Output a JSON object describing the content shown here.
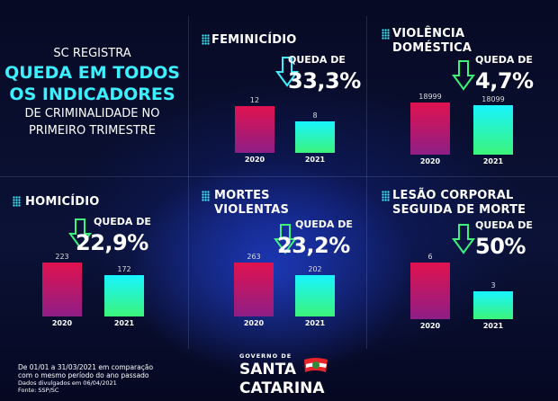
{
  "intro": {
    "line1": "SC REGISTRA",
    "hl1": "QUEDA EM TODOS",
    "hl2": "OS INDICADORES",
    "line2": "DE CRIMINALIDADE NO",
    "line3": "PRIMEIRO TRIMESTRE"
  },
  "colors": {
    "accent": "#3cf0ff",
    "bar2020": "#e0124f",
    "bar2021": "#18f4ff",
    "arrow_green": "#3cf47a"
  },
  "chart_data": [
    {
      "type": "bar",
      "title": "FEMINICÍDIO",
      "categories": [
        "2020",
        "2021"
      ],
      "values": [
        12,
        8
      ],
      "drop_label": "QUEDA DE",
      "drop": "33,3%"
    },
    {
      "type": "bar",
      "title": "VIOLÊNCIA DOMÉSTICA",
      "title_l1": "VIOLÊNCIA",
      "title_l2": "DOMÉSTICA",
      "categories": [
        "2020",
        "2021"
      ],
      "values": [
        18999,
        18099
      ],
      "drop_label": "QUEDA DE",
      "drop": "4,7%"
    },
    {
      "type": "bar",
      "title": "HOMICÍDIO",
      "categories": [
        "2020",
        "2021"
      ],
      "values": [
        223,
        172
      ],
      "drop_label": "QUEDA DE",
      "drop": "22,9%"
    },
    {
      "type": "bar",
      "title": "MORTES VIOLENTAS",
      "title_l1": "MORTES",
      "title_l2": "VIOLENTAS",
      "categories": [
        "2020",
        "2021"
      ],
      "values": [
        263,
        202
      ],
      "drop_label": "QUEDA DE",
      "drop": "23,2%"
    },
    {
      "type": "bar",
      "title": "LESÃO CORPORAL SEGUIDA DE MORTE",
      "title_l1": "LESÃO CORPORAL",
      "title_l2": "SEGUIDA DE MORTE",
      "categories": [
        "2020",
        "2021"
      ],
      "values": [
        6,
        3
      ],
      "drop_label": "QUEDA DE",
      "drop": "50%"
    }
  ],
  "footer": {
    "l1": "De 01/01 a 31/03/2021 em comparação",
    "l2": "com o mesmo período do ano passado",
    "l3": "Dados divulgados em 06/04/2021",
    "l4": "Fonte: SSP/SC"
  },
  "logo": {
    "top": "GOVERNO DE",
    "l1": "SANTA",
    "l2": "CATARINA"
  }
}
